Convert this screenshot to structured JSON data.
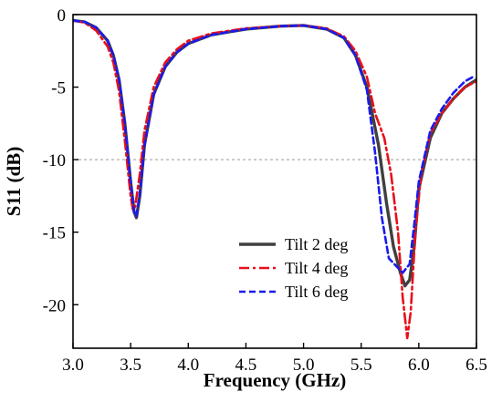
{
  "chart_data": {
    "type": "line",
    "xlabel": "Frequency (GHz)",
    "ylabel": "S11 (dB)",
    "xlim": [
      3.0,
      6.5
    ],
    "ylim": [
      -23,
      0
    ],
    "x_ticks": [
      "3.0",
      "3.5",
      "4.0",
      "4.5",
      "5.0",
      "5.5",
      "6.0",
      "6.5"
    ],
    "y_ticks": [
      "0",
      "-5",
      "-10",
      "-15",
      "-20"
    ],
    "x_tick_values": [
      3.0,
      3.5,
      4.0,
      4.5,
      5.0,
      5.5,
      6.0,
      6.5
    ],
    "y_tick_values": [
      0,
      -5,
      -10,
      -15,
      -20
    ],
    "reference_line": {
      "y": -10,
      "style": "dashed",
      "color": "#999999"
    },
    "legend_position": "lower-right",
    "series": [
      {
        "name": "Tilt 2 deg",
        "color": "#404040",
        "dash": "solid",
        "x": [
          3.0,
          3.1,
          3.2,
          3.3,
          3.35,
          3.4,
          3.45,
          3.5,
          3.53,
          3.55,
          3.58,
          3.62,
          3.7,
          3.8,
          3.9,
          4.0,
          4.2,
          4.5,
          4.8,
          5.0,
          5.2,
          5.35,
          5.45,
          5.55,
          5.65,
          5.72,
          5.78,
          5.84,
          5.88,
          5.92,
          5.96,
          6.0,
          6.1,
          6.2,
          6.3,
          6.4,
          6.5
        ],
        "y": [
          -0.4,
          -0.5,
          -0.9,
          -1.8,
          -2.8,
          -4.5,
          -7.5,
          -11.5,
          -13.6,
          -14.0,
          -12.5,
          -9.0,
          -5.5,
          -3.6,
          -2.6,
          -2.0,
          -1.4,
          -1.0,
          -0.8,
          -0.75,
          -1.0,
          -1.6,
          -2.8,
          -5.0,
          -9.0,
          -13.0,
          -16.0,
          -17.8,
          -18.7,
          -18.3,
          -16.0,
          -12.0,
          -8.5,
          -6.8,
          -5.8,
          -5.0,
          -4.5
        ]
      },
      {
        "name": "Tilt 4 deg",
        "color": "#e8101a",
        "dash": "dashdot",
        "x": [
          3.0,
          3.1,
          3.2,
          3.3,
          3.35,
          3.4,
          3.45,
          3.5,
          3.52,
          3.54,
          3.58,
          3.62,
          3.7,
          3.8,
          3.9,
          4.0,
          4.2,
          4.5,
          4.8,
          5.0,
          5.2,
          5.35,
          5.45,
          5.55,
          5.62,
          5.7,
          5.76,
          5.82,
          5.86,
          5.9,
          5.93,
          5.97,
          6.02,
          6.1,
          6.2,
          6.3,
          6.4,
          6.5
        ],
        "y": [
          -0.4,
          -0.55,
          -1.1,
          -2.2,
          -3.3,
          -5.3,
          -8.7,
          -12.5,
          -13.5,
          -13.2,
          -11.0,
          -8.0,
          -5.0,
          -3.3,
          -2.4,
          -1.8,
          -1.3,
          -0.95,
          -0.8,
          -0.75,
          -0.95,
          -1.5,
          -2.5,
          -4.3,
          -6.8,
          -8.5,
          -11.0,
          -15.0,
          -19.5,
          -22.3,
          -20.5,
          -15.0,
          -11.0,
          -8.2,
          -6.8,
          -5.8,
          -5.0,
          -4.6
        ]
      },
      {
        "name": "Tilt 6 deg",
        "color": "#1a1aee",
        "dash": "dashed",
        "x": [
          3.0,
          3.1,
          3.2,
          3.3,
          3.35,
          3.4,
          3.45,
          3.5,
          3.53,
          3.55,
          3.58,
          3.62,
          3.7,
          3.8,
          3.9,
          4.0,
          4.2,
          4.5,
          4.8,
          5.0,
          5.2,
          5.35,
          5.45,
          5.55,
          5.62,
          5.68,
          5.74,
          5.8,
          5.86,
          5.92,
          5.96,
          6.0,
          6.1,
          6.2,
          6.3,
          6.4,
          6.47
        ],
        "y": [
          -0.4,
          -0.5,
          -0.9,
          -1.8,
          -2.8,
          -4.5,
          -7.5,
          -11.5,
          -13.6,
          -13.9,
          -12.4,
          -9.0,
          -5.5,
          -3.6,
          -2.6,
          -2.0,
          -1.4,
          -1.0,
          -0.8,
          -0.75,
          -1.0,
          -1.6,
          -2.8,
          -5.2,
          -9.5,
          -14.0,
          -16.8,
          -17.3,
          -17.8,
          -17.2,
          -14.5,
          -11.5,
          -8.0,
          -6.5,
          -5.4,
          -4.6,
          -4.3
        ]
      }
    ]
  }
}
